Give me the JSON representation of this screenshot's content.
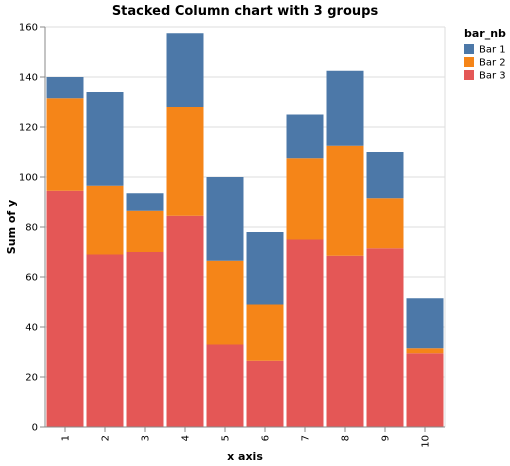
{
  "chart_data": {
    "type": "bar",
    "stacked": true,
    "title": "Stacked Column chart with 3 groups",
    "xlabel": "x axis",
    "ylabel": "Sum of y",
    "ylim": [
      0,
      160
    ],
    "yticks": [
      0,
      20,
      40,
      60,
      80,
      100,
      120,
      140,
      160
    ],
    "categories": [
      "1",
      "2",
      "3",
      "4",
      "5",
      "6",
      "7",
      "8",
      "9",
      "10"
    ],
    "legend": {
      "title": "bar_nb",
      "position": "top-right"
    },
    "grid": true,
    "series": [
      {
        "name": "Bar 1",
        "color": "#4c78a8",
        "values": [
          8.5,
          37.5,
          7,
          29.5,
          33.5,
          29,
          17.5,
          30,
          18.5,
          20
        ]
      },
      {
        "name": "Bar 2",
        "color": "#f58518",
        "values": [
          37,
          27.5,
          16.5,
          43.5,
          33.5,
          22.5,
          32.5,
          44,
          20,
          2
        ]
      },
      {
        "name": "Bar 3",
        "color": "#e45756",
        "values": [
          94.5,
          69,
          70,
          84.5,
          33,
          26.5,
          75,
          68.5,
          71.5,
          29.5
        ]
      }
    ]
  }
}
